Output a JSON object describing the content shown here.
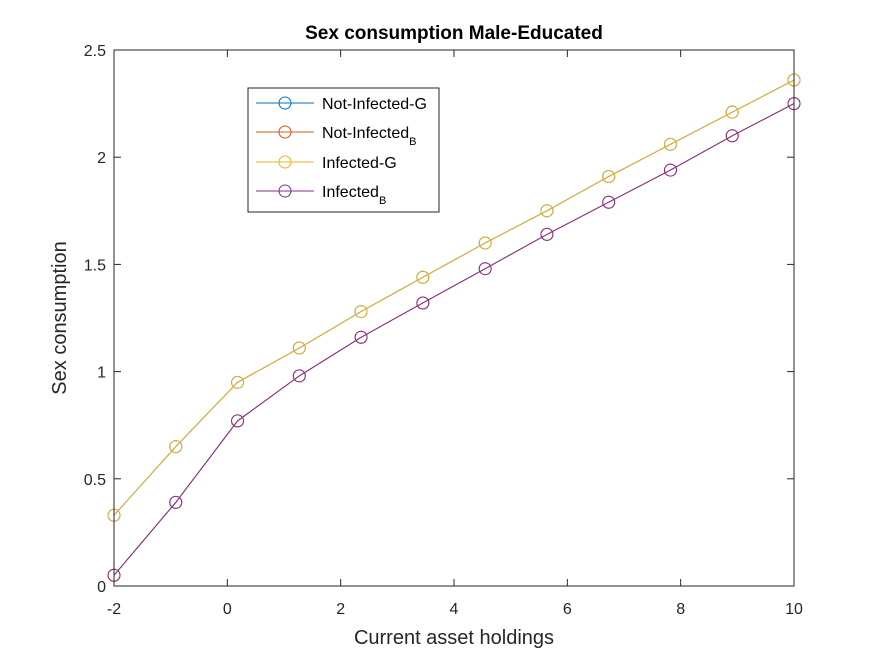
{
  "chart_data": {
    "type": "line",
    "title": "Sex consumption Male-Educated",
    "xlabel": "Current asset holdings",
    "ylabel": "Sex consumption",
    "xlim": [
      -2,
      10
    ],
    "ylim": [
      0,
      2.5
    ],
    "xticks": [
      -2,
      0,
      2,
      4,
      6,
      8,
      10
    ],
    "yticks": [
      0,
      0.5,
      1,
      1.5,
      2,
      2.5
    ],
    "xtick_labels": [
      "-2",
      "0",
      "2",
      "4",
      "6",
      "8",
      "10"
    ],
    "ytick_labels": [
      "0",
      "0.5",
      "1",
      "1.5",
      "2",
      "2.5"
    ],
    "grid": false,
    "legend_position": "upper-left",
    "x": [
      -2,
      -0.91,
      0.18,
      1.27,
      2.36,
      3.45,
      4.55,
      5.64,
      6.73,
      7.82,
      8.91,
      10
    ],
    "series": [
      {
        "name": "Not-Infected-G",
        "color": "#0072BD",
        "values": [
          0.33,
          0.65,
          0.95,
          1.11,
          1.28,
          1.44,
          1.6,
          1.75,
          1.91,
          2.06,
          2.21,
          2.36
        ]
      },
      {
        "name": "Not-Infected_B",
        "color": "#D95319",
        "values": [
          0.05,
          0.39,
          0.77,
          0.98,
          1.16,
          1.32,
          1.48,
          1.64,
          1.79,
          1.94,
          2.1,
          2.25
        ]
      },
      {
        "name": "Infected-G",
        "color": "#EDB120",
        "values": [
          0.33,
          0.65,
          0.95,
          1.11,
          1.28,
          1.44,
          1.6,
          1.75,
          1.91,
          2.06,
          2.21,
          2.36
        ]
      },
      {
        "name": "Infected_B",
        "color": "#7E2F8E",
        "values": [
          0.05,
          0.39,
          0.77,
          0.98,
          1.16,
          1.32,
          1.48,
          1.64,
          1.79,
          1.94,
          2.1,
          2.25
        ]
      }
    ],
    "legend": [
      {
        "main": "Not-Infected-G",
        "sub": ""
      },
      {
        "main": "Not-Infected",
        "sub": "B"
      },
      {
        "main": "Infected-G",
        "sub": ""
      },
      {
        "main": "Infected",
        "sub": "B"
      }
    ]
  }
}
